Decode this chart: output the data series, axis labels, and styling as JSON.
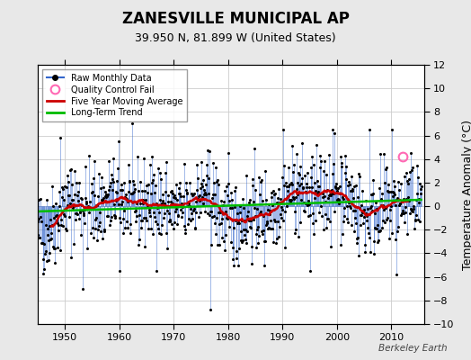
{
  "title": "ZANESVILLE MUNICIPAL AP",
  "subtitle": "39.950 N, 81.899 W (United States)",
  "ylabel": "Temperature Anomaly (°C)",
  "watermark": "Berkeley Earth",
  "xlim": [
    1945,
    2016
  ],
  "ylim": [
    -10,
    12
  ],
  "yticks": [
    -10,
    -8,
    -6,
    -4,
    -2,
    0,
    2,
    4,
    6,
    8,
    10,
    12
  ],
  "xticks": [
    1950,
    1960,
    1970,
    1980,
    1990,
    2000,
    2010
  ],
  "x_start": 1945.0,
  "x_end": 2015.5,
  "num_months": 846,
  "seed": 42,
  "bg_color": "#e8e8e8",
  "plot_bg_color": "#ffffff",
  "grid_color": "#cccccc",
  "raw_line_color": "#3366cc",
  "raw_dot_color": "#000000",
  "moving_avg_color": "#cc0000",
  "trend_color": "#00bb00",
  "qc_fail_color": "#ff69b4",
  "legend_loc": "upper left",
  "title_fontsize": 12,
  "subtitle_fontsize": 9,
  "tick_fontsize": 8,
  "ylabel_fontsize": 9
}
